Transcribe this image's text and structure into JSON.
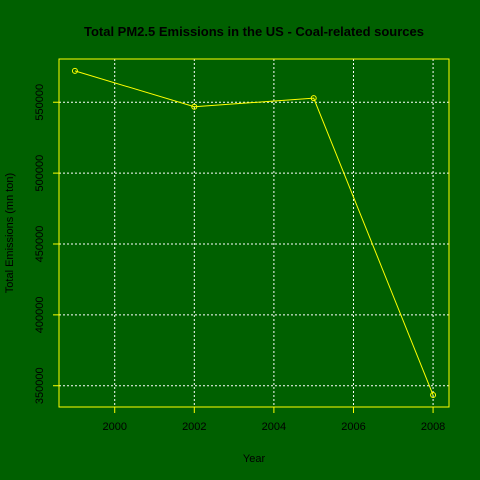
{
  "chart_data": {
    "type": "line",
    "title": "Total PM2.5 Emissions in the US - Coal-related sources",
    "xlabel": "Year",
    "ylabel": "Total Emissions (mn ton)",
    "x": [
      1999,
      2002,
      2005,
      2008
    ],
    "series": [
      {
        "values": [
          572126,
          546789,
          552881,
          343432
        ]
      }
    ],
    "xlim": [
      1998.6,
      2008.4
    ],
    "ylim": [
      335000,
      580500
    ],
    "xticks": [
      2000,
      2002,
      2004,
      2006,
      2008
    ],
    "xtick_labels": [
      "2000",
      "2002",
      "2004",
      "2006",
      "2008"
    ],
    "yticks": [
      350000,
      400000,
      450000,
      500000,
      550000
    ],
    "ytick_labels": [
      "350000",
      "400000",
      "450000",
      "500000",
      "550000"
    ],
    "grid": true,
    "markers": "open-circle",
    "colors": {
      "background": "#006000",
      "series": "#FFFF00",
      "frame": "#FFFF00",
      "grid": "#FFFFFF",
      "text": "#000000"
    }
  }
}
